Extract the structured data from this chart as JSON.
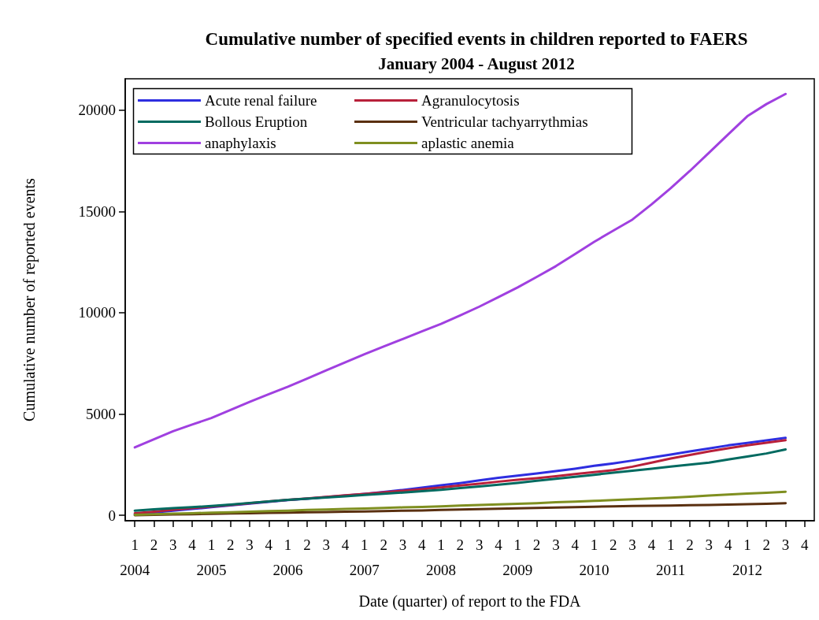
{
  "chart_data": {
    "type": "line",
    "title": "Cumulative number of specified events in children reported to FAERS",
    "subtitle": "January 2004 - August 2012",
    "xlabel": "Date (quarter) of report to the FDA",
    "ylabel": "Cumulative number of reported events",
    "categories": [
      "1\n2004",
      "2",
      "3",
      "4",
      "1\n2005",
      "2",
      "3",
      "4",
      "1\n2006",
      "2",
      "3",
      "4",
      "1\n2007",
      "2",
      "3",
      "4",
      "1\n2008",
      "2",
      "3",
      "4",
      "1\n2009",
      "2",
      "3",
      "4",
      "1\n2010",
      "2",
      "3",
      "4",
      "1\n2011",
      "2",
      "3",
      "4",
      "1\n2012",
      "2",
      "3",
      "4"
    ],
    "ylim": [
      -270,
      21550
    ],
    "yticks": [
      0,
      5000,
      10000,
      15000,
      20000
    ],
    "grid": false,
    "legend": "top left",
    "marker": "none",
    "line_style": "solid",
    "series": [
      {
        "name": "Acute renal failure",
        "color": "#2e2ee0",
        "values": [
          50,
          140,
          230,
          310,
          400,
          490,
          580,
          660,
          750,
          820,
          900,
          970,
          1050,
          1150,
          1250,
          1360,
          1480,
          1590,
          1720,
          1850,
          1960,
          2060,
          2180,
          2300,
          2440,
          2560,
          2700,
          2850,
          3000,
          3150,
          3300,
          3450,
          3570,
          3700,
          3820,
          null
        ]
      },
      {
        "name": "Agranulocytosis",
        "color": "#b8203a",
        "values": [
          100,
          180,
          270,
          350,
          430,
          510,
          600,
          680,
          760,
          830,
          910,
          980,
          1050,
          1130,
          1210,
          1290,
          1370,
          1470,
          1560,
          1660,
          1750,
          1830,
          1930,
          2030,
          2130,
          2230,
          2400,
          2600,
          2800,
          2980,
          3150,
          3310,
          3450,
          3580,
          3710,
          null
        ]
      },
      {
        "name": "Bollous Eruption",
        "color": "#006a60",
        "values": [
          230,
          290,
          350,
          400,
          460,
          530,
          610,
          680,
          760,
          820,
          880,
          940,
          1000,
          1060,
          1120,
          1190,
          1260,
          1340,
          1420,
          1510,
          1600,
          1700,
          1800,
          1900,
          2000,
          2100,
          2200,
          2300,
          2400,
          2500,
          2600,
          2750,
          2900,
          3050,
          3250,
          null
        ]
      },
      {
        "name": "Ventricular tachyarrythmias",
        "color": "#5a3010",
        "values": [
          0,
          20,
          40,
          50,
          70,
          90,
          100,
          120,
          130,
          150,
          160,
          180,
          190,
          210,
          230,
          240,
          260,
          280,
          300,
          320,
          340,
          360,
          380,
          400,
          420,
          440,
          460,
          470,
          480,
          500,
          510,
          530,
          550,
          570,
          600,
          null
        ]
      },
      {
        "name": "anaphylaxis",
        "color": "#a040e0",
        "values": [
          3350,
          3750,
          4150,
          4480,
          4800,
          5200,
          5600,
          5980,
          6350,
          6750,
          7150,
          7550,
          7950,
          8330,
          8700,
          9080,
          9450,
          9870,
          10300,
          10770,
          11250,
          11770,
          12300,
          12900,
          13500,
          14050,
          14600,
          15350,
          16150,
          17000,
          17900,
          18800,
          19700,
          20300,
          20800,
          null
        ]
      },
      {
        "name": "aplastic anemia",
        "color": "#7f8f20",
        "values": [
          20,
          50,
          80,
          100,
          130,
          150,
          180,
          210,
          230,
          260,
          280,
          310,
          330,
          360,
          390,
          410,
          440,
          480,
          510,
          540,
          570,
          600,
          640,
          670,
          710,
          750,
          790,
          830,
          870,
          920,
          970,
          1020,
          1070,
          1110,
          1160,
          null
        ]
      }
    ]
  }
}
